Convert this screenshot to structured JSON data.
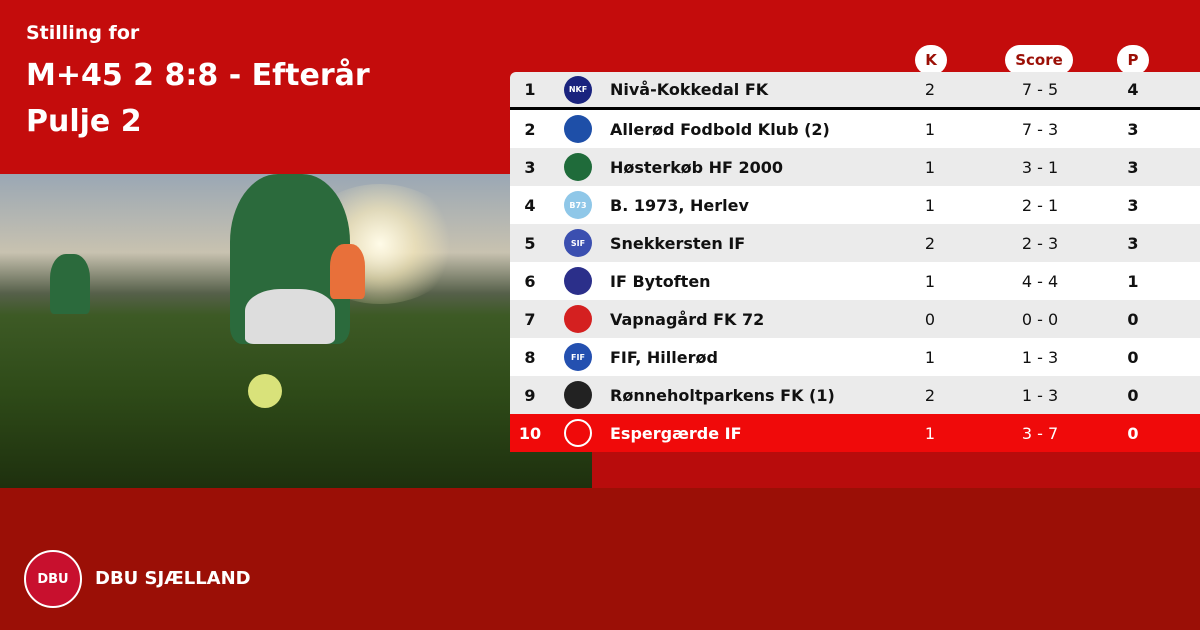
{
  "header": {
    "subtitle": "Stilling for",
    "title": "M+45 2 8:8 - Efterår",
    "group": "Pulje 2"
  },
  "columns": {
    "k": "K",
    "score": "Score",
    "p": "P"
  },
  "rows": [
    {
      "pos": "1",
      "crest": "NKF",
      "name": "Nivå-Kokkedal FK",
      "k": "2",
      "score": "7 - 5",
      "p": "4",
      "color": "#1a237e"
    },
    {
      "pos": "2",
      "crest": "",
      "name": "Allerød Fodbold Klub (2)",
      "k": "1",
      "score": "7 - 3",
      "p": "3",
      "color": "#1e4fa8"
    },
    {
      "pos": "3",
      "crest": "",
      "name": "Høsterkøb HF 2000",
      "k": "1",
      "score": "3 - 1",
      "p": "3",
      "color": "#1f6b3a"
    },
    {
      "pos": "4",
      "crest": "B73",
      "name": "B. 1973, Herlev",
      "k": "1",
      "score": "2 - 1",
      "p": "3",
      "color": "#8fc7e8"
    },
    {
      "pos": "5",
      "crest": "SIF",
      "name": "Snekkersten IF",
      "k": "2",
      "score": "2 - 3",
      "p": "3",
      "color": "#3b4fb0"
    },
    {
      "pos": "6",
      "crest": "",
      "name": "IF Bytoften",
      "k": "1",
      "score": "4 - 4",
      "p": "1",
      "color": "#2b2f8a"
    },
    {
      "pos": "7",
      "crest": "",
      "name": "Vapnagård FK 72",
      "k": "0",
      "score": "0 - 0",
      "p": "0",
      "color": "#d42020"
    },
    {
      "pos": "8",
      "crest": "FIF",
      "name": "FIF, Hillerød",
      "k": "1",
      "score": "1 - 3",
      "p": "0",
      "color": "#2450b0"
    },
    {
      "pos": "9",
      "crest": "",
      "name": "Rønneholtparkens FK (1)",
      "k": "2",
      "score": "1 - 3",
      "p": "0",
      "color": "#222222"
    },
    {
      "pos": "10",
      "crest": "",
      "name": "Espergærde IF",
      "k": "1",
      "score": "3 - 7",
      "p": "0",
      "color": "#ffffff"
    }
  ],
  "footer": {
    "logo": "DBU",
    "brand": "DBU SJÆLLAND"
  },
  "colors": {
    "primary": "#c40c0c",
    "footer": "#9b0f06",
    "highlight": "#f00a0a"
  }
}
